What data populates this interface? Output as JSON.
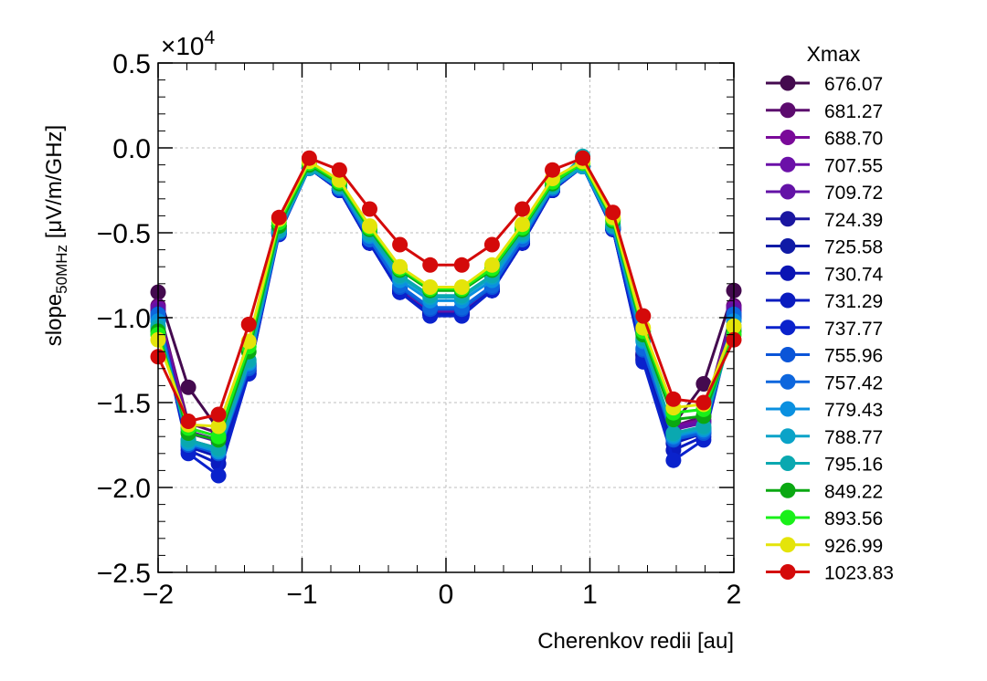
{
  "chart_data": {
    "type": "line",
    "title": "",
    "xlabel": "Cherenkov redii [au]",
    "ylabel_main": "slope",
    "ylabel_sub": "50MHz",
    "ylabel_unit": " [μV/m/GHz]",
    "y_multiplier": "×10",
    "y_multiplier_exp": "4",
    "xlim": [
      -2,
      2
    ],
    "ylim": [
      -2.5,
      0.5
    ],
    "xticks": [
      -2,
      -1,
      0,
      1,
      2
    ],
    "xtick_labels": [
      "−2",
      "−1",
      "0",
      "1",
      "2"
    ],
    "yticks": [
      -2.5,
      -2.0,
      -1.5,
      -1.0,
      -0.5,
      0.0,
      0.5
    ],
    "ytick_labels": [
      "−2.5",
      "−2.0",
      "−1.5",
      "−1.0",
      "−0.5",
      "0.0",
      "0.5"
    ],
    "grid": true,
    "legend_title": "Xmax",
    "legend_position": "outside-right",
    "x": [
      -2.0,
      -1.79,
      -1.58,
      -1.37,
      -1.16,
      -0.95,
      -0.74,
      -0.53,
      -0.32,
      -0.11,
      0.11,
      0.32,
      0.53,
      0.74,
      0.95,
      1.16,
      1.37,
      1.58,
      1.79,
      2.0
    ],
    "series": [
      {
        "name": "676.07",
        "color": "#440a4f",
        "values": [
          -0.85,
          -1.41,
          -1.66,
          -1.28,
          -0.46,
          -0.12,
          -0.24,
          -0.55,
          -0.83,
          -0.96,
          -0.96,
          -0.83,
          -0.55,
          -0.24,
          -0.11,
          -0.47,
          -1.25,
          -1.63,
          -1.39,
          -0.84
        ]
      },
      {
        "name": "681.27",
        "color": "#5c0b6e",
        "values": [
          -0.93,
          -1.62,
          -1.68,
          -1.27,
          -0.48,
          -0.12,
          -0.24,
          -0.56,
          -0.84,
          -0.97,
          -0.97,
          -0.83,
          -0.56,
          -0.24,
          -0.11,
          -0.47,
          -1.23,
          -1.64,
          -1.58,
          -0.93
        ]
      },
      {
        "name": "688.70",
        "color": "#7a0a99",
        "values": [
          -0.94,
          -1.65,
          -1.7,
          -1.28,
          -0.48,
          -0.12,
          -0.24,
          -0.55,
          -0.83,
          -0.96,
          -0.96,
          -0.83,
          -0.55,
          -0.24,
          -0.11,
          -0.47,
          -1.22,
          -1.64,
          -1.6,
          -0.94
        ]
      },
      {
        "name": "707.55",
        "color": "#6b10a8",
        "values": [
          -0.95,
          -1.67,
          -1.72,
          -1.29,
          -0.49,
          -0.12,
          -0.24,
          -0.55,
          -0.83,
          -0.96,
          -0.96,
          -0.83,
          -0.55,
          -0.24,
          -0.11,
          -0.47,
          -1.21,
          -1.65,
          -1.61,
          -0.95
        ]
      },
      {
        "name": "709.72",
        "color": "#6312a6",
        "values": [
          -0.96,
          -1.68,
          -1.73,
          -1.3,
          -0.49,
          -0.12,
          -0.25,
          -0.56,
          -0.84,
          -0.97,
          -0.97,
          -0.83,
          -0.56,
          -0.24,
          -0.11,
          -0.47,
          -1.21,
          -1.66,
          -1.62,
          -0.96
        ]
      },
      {
        "name": "724.39",
        "color": "#1a16a0",
        "values": [
          -0.98,
          -1.72,
          -1.77,
          -1.31,
          -0.5,
          -0.12,
          -0.25,
          -0.56,
          -0.85,
          -0.98,
          -0.98,
          -0.84,
          -0.56,
          -0.25,
          -0.11,
          -0.48,
          -1.22,
          -1.68,
          -1.65,
          -0.98
        ]
      },
      {
        "name": "725.58",
        "color": "#0f1aa6",
        "values": [
          -0.98,
          -1.74,
          -1.78,
          -1.31,
          -0.5,
          -0.12,
          -0.25,
          -0.56,
          -0.85,
          -0.98,
          -0.98,
          -0.84,
          -0.56,
          -0.25,
          -0.11,
          -0.48,
          -1.22,
          -1.69,
          -1.66,
          -0.98
        ]
      },
      {
        "name": "730.74",
        "color": "#0a14b4",
        "values": [
          -0.99,
          -1.76,
          -1.82,
          -1.32,
          -0.5,
          -0.12,
          -0.25,
          -0.56,
          -0.85,
          -0.98,
          -0.98,
          -0.84,
          -0.56,
          -0.25,
          -0.11,
          -0.48,
          -1.24,
          -1.74,
          -1.68,
          -0.99
        ]
      },
      {
        "name": "731.29",
        "color": "#0a1cbf",
        "values": [
          -0.99,
          -1.78,
          -1.86,
          -1.33,
          -0.5,
          -0.12,
          -0.25,
          -0.56,
          -0.85,
          -0.98,
          -0.98,
          -0.84,
          -0.56,
          -0.25,
          -0.11,
          -0.48,
          -1.25,
          -1.78,
          -1.7,
          -0.99
        ]
      },
      {
        "name": "737.77",
        "color": "#0a22cc",
        "values": [
          -1.0,
          -1.8,
          -1.93,
          -1.33,
          -0.51,
          -0.12,
          -0.25,
          -0.56,
          -0.85,
          -0.99,
          -0.99,
          -0.84,
          -0.56,
          -0.25,
          -0.11,
          -0.48,
          -1.26,
          -1.84,
          -1.72,
          -1.0
        ]
      },
      {
        "name": "755.96",
        "color": "#0a55d8",
        "values": [
          -1.0,
          -1.75,
          -1.8,
          -1.3,
          -0.5,
          -0.12,
          -0.24,
          -0.54,
          -0.82,
          -0.95,
          -0.95,
          -0.82,
          -0.54,
          -0.24,
          -0.11,
          -0.47,
          -1.19,
          -1.72,
          -1.68,
          -1.0
        ]
      },
      {
        "name": "757.42",
        "color": "#0d66dd",
        "values": [
          -0.98,
          -1.74,
          -1.79,
          -1.29,
          -0.5,
          -0.12,
          -0.24,
          -0.54,
          -0.81,
          -0.94,
          -0.94,
          -0.81,
          -0.54,
          -0.24,
          -0.11,
          -0.47,
          -1.18,
          -1.71,
          -1.67,
          -0.98
        ]
      },
      {
        "name": "779.43",
        "color": "#0a90e0",
        "values": [
          -1.02,
          -1.74,
          -1.79,
          -1.27,
          -0.49,
          -0.12,
          -0.23,
          -0.52,
          -0.78,
          -0.9,
          -0.9,
          -0.78,
          -0.52,
          -0.23,
          -0.11,
          -0.46,
          -1.14,
          -1.7,
          -1.66,
          -1.02
        ]
      },
      {
        "name": "788.77",
        "color": "#0aa3c8",
        "values": [
          -1.05,
          -1.73,
          -1.78,
          -1.26,
          -0.49,
          -0.12,
          -0.23,
          -0.51,
          -0.76,
          -0.88,
          -0.88,
          -0.76,
          -0.51,
          -0.23,
          -0.11,
          -0.46,
          -1.13,
          -1.69,
          -1.65,
          -1.05
        ]
      },
      {
        "name": "795.16",
        "color": "#0aa8b0",
        "values": [
          -1.06,
          -1.72,
          -1.77,
          -1.25,
          -0.48,
          -0.11,
          -0.22,
          -0.5,
          -0.75,
          -0.87,
          -0.87,
          -0.75,
          -0.5,
          -0.22,
          -0.05,
          -0.45,
          -1.12,
          -1.68,
          -1.64,
          -1.06
        ]
      },
      {
        "name": "849.22",
        "color": "#0aa812",
        "values": [
          -1.08,
          -1.68,
          -1.72,
          -1.2,
          -0.46,
          -0.1,
          -0.21,
          -0.48,
          -0.72,
          -0.84,
          -0.84,
          -0.72,
          -0.48,
          -0.21,
          -0.09,
          -0.43,
          -1.1,
          -1.6,
          -1.58,
          -1.08
        ]
      },
      {
        "name": "893.56",
        "color": "#19f019",
        "values": [
          -1.1,
          -1.65,
          -1.7,
          -1.17,
          -0.44,
          -0.09,
          -0.2,
          -0.47,
          -0.71,
          -0.83,
          -0.83,
          -0.71,
          -0.47,
          -0.2,
          -0.09,
          -0.42,
          -1.08,
          -1.56,
          -1.54,
          -1.1
        ]
      },
      {
        "name": "926.99",
        "color": "#e4e40a",
        "values": [
          -1.13,
          -1.63,
          -1.64,
          -1.14,
          -0.42,
          -0.08,
          -0.19,
          -0.46,
          -0.7,
          -0.82,
          -0.82,
          -0.69,
          -0.45,
          -0.18,
          -0.08,
          -0.41,
          -1.06,
          -1.53,
          -1.51,
          -1.05
        ]
      },
      {
        "name": "1023.83",
        "color": "#d40a0a",
        "values": [
          -1.23,
          -1.61,
          -1.57,
          -1.04,
          -0.41,
          -0.06,
          -0.13,
          -0.36,
          -0.57,
          -0.69,
          -0.69,
          -0.57,
          -0.36,
          -0.13,
          -0.06,
          -0.38,
          -0.99,
          -1.48,
          -1.5,
          -1.13
        ]
      }
    ]
  }
}
